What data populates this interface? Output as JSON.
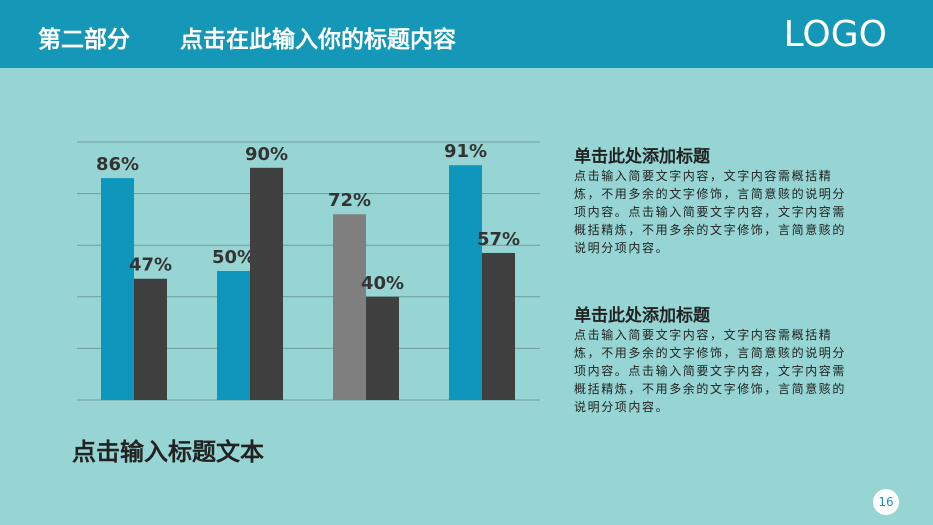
{
  "header": {
    "section": "第二部分",
    "title": "点击在此输入你的标题内容",
    "logo": "LOGO"
  },
  "chart_data": {
    "type": "bar",
    "categories": [
      null,
      null,
      null,
      null
    ],
    "series": [
      {
        "values": [
          86,
          50,
          72,
          91
        ],
        "value_labels": [
          "86%",
          "50%",
          "72%",
          "91%"
        ],
        "colors": [
          "#0e96bd",
          "#0e96bd",
          "#7f7f7f",
          "#0e96bd"
        ]
      },
      {
        "values": [
          47,
          90,
          40,
          57
        ],
        "value_labels": [
          "47%",
          "90%",
          "40%",
          "57%"
        ],
        "color": "#404040"
      }
    ],
    "ylim": [
      0,
      100
    ],
    "yticks": [
      0,
      20,
      40,
      60,
      80,
      100
    ],
    "grid": true
  },
  "caption": "点击输入标题文本",
  "blocks": [
    {
      "heading": "单击此处添加标题",
      "body": "点击输入简要文字内容，文字内容需概括精炼，不用多余的文字修饰，言简意赅的说明分项内容。点击输入简要文字内容，文字内容需概括精炼，不用多余的文字修饰，言简意赅的说明分项内容。"
    },
    {
      "heading": "单击此处添加标题",
      "body": "点击输入简要文字内容，文字内容需概括精炼，不用多余的文字修饰，言简意赅的说明分项内容。点击输入简要文字内容，文字内容需概括精炼，不用多余的文字修饰，言简意赅的说明分项内容。"
    }
  ],
  "page_number": 16
}
